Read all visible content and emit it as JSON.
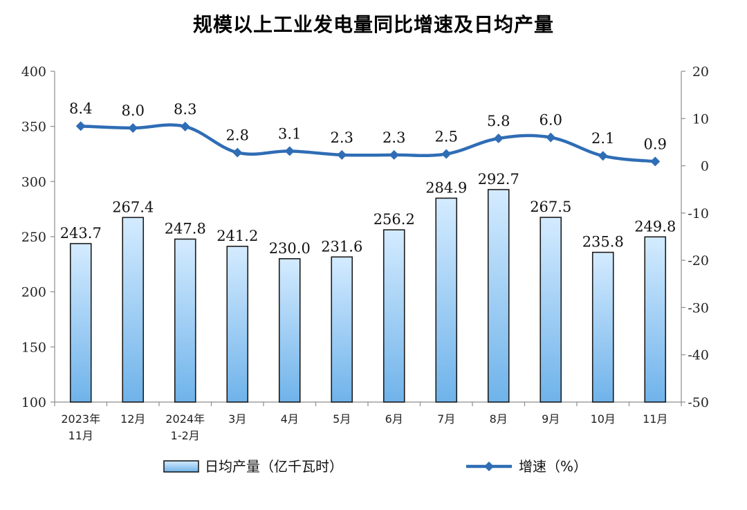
{
  "chart_data": {
    "type": "bar",
    "title": "规模以上工业发电量同比增速及日均产量",
    "categories": [
      "2023年\n11月",
      "12月",
      "2024年\n1-2月",
      "3月",
      "4月",
      "5月",
      "6月",
      "7月",
      "8月",
      "9月",
      "10月",
      "11月"
    ],
    "series": [
      {
        "name": "日均产量（亿千瓦时）",
        "type": "bar",
        "axis": "left",
        "values": [
          243.7,
          267.4,
          247.8,
          241.2,
          230.0,
          231.6,
          256.2,
          284.9,
          292.7,
          267.5,
          235.8,
          249.8
        ],
        "labels": [
          "243.7",
          "267.4",
          "247.8",
          "241.2",
          "230.0",
          "231.6",
          "256.2",
          "284.9",
          "292.7",
          "267.5",
          "235.8",
          "249.8"
        ]
      },
      {
        "name": "增速（%）",
        "type": "line",
        "axis": "right",
        "values": [
          8.4,
          8.0,
          8.3,
          2.8,
          3.1,
          2.3,
          2.3,
          2.5,
          5.8,
          6.0,
          2.1,
          0.9
        ],
        "labels": [
          "8.4",
          "8.0",
          "8.3",
          "2.8",
          "3.1",
          "2.3",
          "2.3",
          "2.5",
          "5.8",
          "6.0",
          "2.1",
          "0.9"
        ]
      }
    ],
    "y_left": {
      "min": 100,
      "max": 400,
      "ticks": [
        100,
        150,
        200,
        250,
        300,
        350,
        400
      ]
    },
    "y_right": {
      "min": -50,
      "max": 20,
      "ticks": [
        -50,
        -40,
        -30,
        -20,
        -10,
        0,
        10,
        20
      ]
    },
    "grid": false,
    "legend_position": "bottom",
    "colors": {
      "bar_fill_top": "#d4ebff",
      "bar_fill_bottom": "#6fb3ea",
      "bar_stroke": "#1a1a1a",
      "line": "#2f6db5",
      "axis": "#8c8c8c"
    }
  }
}
